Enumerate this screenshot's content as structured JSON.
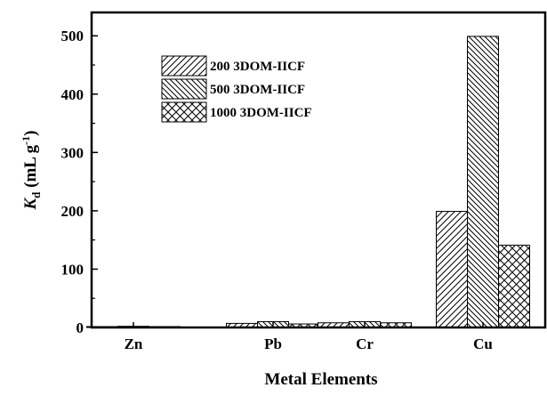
{
  "chart_data": {
    "type": "bar",
    "xlabel": "Metal Elements",
    "ylabel_main": "K",
    "ylabel_sub": "d",
    "ylabel_unit": " (mL g",
    "ylabel_sup": "-1",
    "ylabel_close": ")",
    "categories": [
      "Zn",
      "Pb",
      "Cr",
      "Cu"
    ],
    "series": [
      {
        "name": "200 3DOM-IICF",
        "pattern": "diag-fwd",
        "values": [
          1,
          7,
          8,
          199
        ]
      },
      {
        "name": "500 3DOM-IICF",
        "pattern": "diag-back",
        "values": [
          2,
          10,
          10,
          499
        ]
      },
      {
        "name": "1000 3DOM-IICF",
        "pattern": "crosshatch",
        "values": [
          1,
          6,
          8,
          141
        ]
      }
    ],
    "ylim": [
      0,
      540
    ],
    "yticks": [
      0,
      100,
      200,
      300,
      400,
      500
    ],
    "legend_position": "top-left",
    "grid": false
  }
}
